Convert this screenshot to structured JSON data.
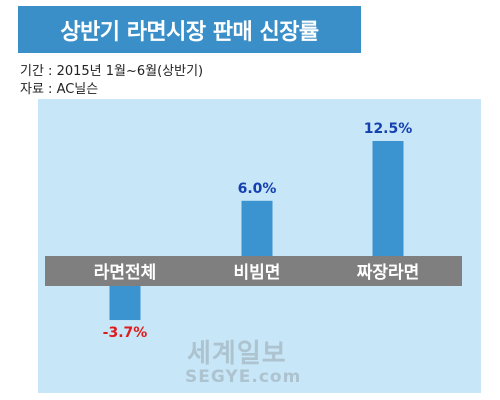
{
  "header": {
    "title": "상반기 라면시장 판매 신장률",
    "period": "기간 : 2015년 1월~6월(상반기)",
    "source": "자료 : AC닐슨"
  },
  "watermark": {
    "name": "세계일보",
    "url": "SEGYE.com"
  },
  "colors": {
    "title_bar": "#3a8fc8",
    "panel": "#c7e6f7",
    "bar": "#3b94cf",
    "band": "#7f7f7f",
    "positive_label": "#1540b0",
    "negative_label": "#e01b1b"
  },
  "chart_data": {
    "type": "bar",
    "title": "상반기 라면시장 판매 신장률",
    "categories": [
      "라면전체",
      "비빔면",
      "짜장라면"
    ],
    "values": [
      -3.7,
      6.0,
      12.5
    ],
    "value_labels": [
      "-3.7%",
      "6.0%",
      "12.5%"
    ],
    "unit": "%",
    "ylim": [
      -3.7,
      12.5
    ],
    "grid": false,
    "legend": "none"
  }
}
